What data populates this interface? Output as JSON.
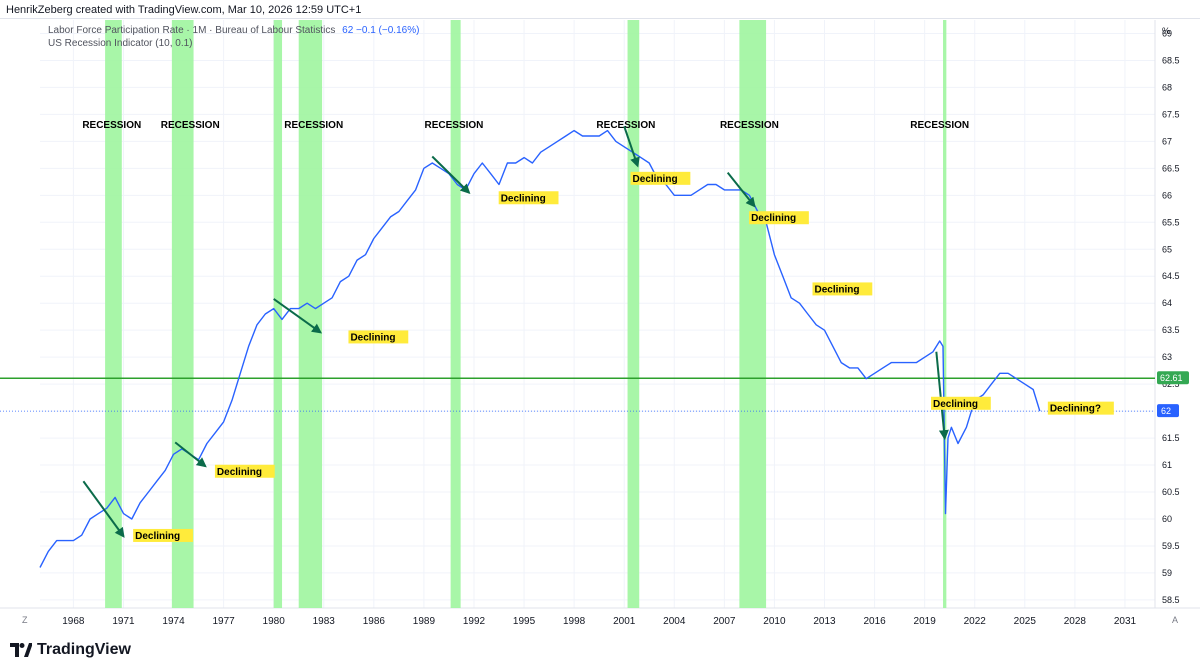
{
  "header": {
    "credit": "HenrikZeberg created with TradingView.com, Mar 10, 2026 12:59 UTC+1"
  },
  "legend": {
    "series_name": "Labor Force Participation Rate · 1M · Bureau of Labour Statistics",
    "series_value": "62  −0.1 (−0.16%)",
    "indicator_name": "US Recession Indicator (10, 0.1)"
  },
  "footer": {
    "logo_text": "TradingView",
    "left_corner": "Z",
    "right_corner": "A"
  },
  "colors": {
    "line": "#2962ff",
    "recession": "#9ef59e",
    "level_line": "#2ca02c",
    "arrow": "#0b6b4a",
    "label_bg": "#ffeb3b",
    "price_tag": "#2962ff",
    "level_tag": "#34a853"
  },
  "chart_data": {
    "type": "line",
    "unit_label": "%",
    "x_ticks": [
      "1968",
      "1971",
      "1974",
      "1977",
      "1980",
      "1983",
      "1986",
      "1989",
      "1992",
      "1995",
      "1998",
      "2001",
      "2004",
      "2007",
      "2010",
      "2013",
      "2016",
      "2019",
      "2022",
      "2025",
      "2028",
      "2031"
    ],
    "y_ticks": [
      "58.5",
      "59",
      "59.5",
      "60",
      "60.5",
      "61",
      "61.5",
      "62",
      "62.5",
      "63",
      "63.5",
      "64",
      "64.5",
      "65",
      "65.5",
      "66",
      "66.5",
      "67",
      "67.5",
      "68",
      "68.5",
      "69"
    ],
    "xlim": [
      1966.0,
      2032.8
    ],
    "ylim": [
      58.35,
      69.25
    ],
    "series": [
      {
        "values": [
          [
            1966.0,
            59.1
          ],
          [
            1966.5,
            59.4
          ],
          [
            1967.0,
            59.6
          ],
          [
            1967.5,
            59.6
          ],
          [
            1968.0,
            59.6
          ],
          [
            1968.5,
            59.7
          ],
          [
            1969.0,
            60.0
          ],
          [
            1969.5,
            60.1
          ],
          [
            1970.0,
            60.2
          ],
          [
            1970.5,
            60.4
          ],
          [
            1971.0,
            60.1
          ],
          [
            1971.5,
            60.0
          ],
          [
            1972.0,
            60.3
          ],
          [
            1972.5,
            60.5
          ],
          [
            1973.0,
            60.7
          ],
          [
            1973.5,
            60.9
          ],
          [
            1974.0,
            61.2
          ],
          [
            1974.5,
            61.3
          ],
          [
            1975.0,
            61.2
          ],
          [
            1975.5,
            61.1
          ],
          [
            1976.0,
            61.4
          ],
          [
            1976.5,
            61.6
          ],
          [
            1977.0,
            61.8
          ],
          [
            1977.5,
            62.2
          ],
          [
            1978.0,
            62.7
          ],
          [
            1978.5,
            63.2
          ],
          [
            1979.0,
            63.6
          ],
          [
            1979.5,
            63.8
          ],
          [
            1980.0,
            63.9
          ],
          [
            1980.5,
            63.7
          ],
          [
            1981.0,
            63.9
          ],
          [
            1981.5,
            63.9
          ],
          [
            1982.0,
            64.0
          ],
          [
            1982.5,
            63.9
          ],
          [
            1983.0,
            64.0
          ],
          [
            1983.5,
            64.1
          ],
          [
            1984.0,
            64.4
          ],
          [
            1984.5,
            64.5
          ],
          [
            1985.0,
            64.8
          ],
          [
            1985.5,
            64.9
          ],
          [
            1986.0,
            65.2
          ],
          [
            1986.5,
            65.4
          ],
          [
            1987.0,
            65.6
          ],
          [
            1987.5,
            65.7
          ],
          [
            1988.0,
            65.9
          ],
          [
            1988.5,
            66.1
          ],
          [
            1989.0,
            66.5
          ],
          [
            1989.5,
            66.6
          ],
          [
            1990.0,
            66.5
          ],
          [
            1990.5,
            66.4
          ],
          [
            1991.0,
            66.2
          ],
          [
            1991.5,
            66.1
          ],
          [
            1992.0,
            66.4
          ],
          [
            1992.5,
            66.6
          ],
          [
            1993.0,
            66.4
          ],
          [
            1993.5,
            66.2
          ],
          [
            1994.0,
            66.6
          ],
          [
            1994.5,
            66.6
          ],
          [
            1995.0,
            66.7
          ],
          [
            1995.5,
            66.6
          ],
          [
            1996.0,
            66.8
          ],
          [
            1996.5,
            66.9
          ],
          [
            1997.0,
            67.0
          ],
          [
            1997.5,
            67.1
          ],
          [
            1998.0,
            67.2
          ],
          [
            1998.5,
            67.1
          ],
          [
            1999.0,
            67.1
          ],
          [
            1999.5,
            67.1
          ],
          [
            2000.0,
            67.2
          ],
          [
            2000.5,
            67.0
          ],
          [
            2001.0,
            66.9
          ],
          [
            2001.5,
            66.8
          ],
          [
            2002.0,
            66.7
          ],
          [
            2002.5,
            66.6
          ],
          [
            2003.0,
            66.3
          ],
          [
            2003.5,
            66.2
          ],
          [
            2004.0,
            66.0
          ],
          [
            2004.5,
            66.0
          ],
          [
            2005.0,
            66.0
          ],
          [
            2005.5,
            66.1
          ],
          [
            2006.0,
            66.2
          ],
          [
            2006.5,
            66.2
          ],
          [
            2007.0,
            66.1
          ],
          [
            2007.5,
            66.1
          ],
          [
            2008.0,
            66.1
          ],
          [
            2008.5,
            66.0
          ],
          [
            2009.0,
            65.7
          ],
          [
            2009.5,
            65.5
          ],
          [
            2010.0,
            64.9
          ],
          [
            2010.5,
            64.5
          ],
          [
            2011.0,
            64.1
          ],
          [
            2011.5,
            64.0
          ],
          [
            2012.0,
            63.8
          ],
          [
            2012.5,
            63.6
          ],
          [
            2013.0,
            63.5
          ],
          [
            2013.5,
            63.2
          ],
          [
            2014.0,
            62.9
          ],
          [
            2014.5,
            62.8
          ],
          [
            2015.0,
            62.8
          ],
          [
            2015.5,
            62.6
          ],
          [
            2016.0,
            62.7
          ],
          [
            2016.5,
            62.8
          ],
          [
            2017.0,
            62.9
          ],
          [
            2017.5,
            62.9
          ],
          [
            2018.0,
            62.9
          ],
          [
            2018.5,
            62.9
          ],
          [
            2019.0,
            63.0
          ],
          [
            2019.5,
            63.1
          ],
          [
            2019.9,
            63.3
          ],
          [
            2020.1,
            63.2
          ],
          [
            2020.25,
            60.1
          ],
          [
            2020.4,
            61.5
          ],
          [
            2020.6,
            61.7
          ],
          [
            2021.0,
            61.4
          ],
          [
            2021.5,
            61.7
          ],
          [
            2022.0,
            62.2
          ],
          [
            2022.5,
            62.3
          ],
          [
            2023.0,
            62.5
          ],
          [
            2023.5,
            62.7
          ],
          [
            2024.0,
            62.7
          ],
          [
            2024.5,
            62.6
          ],
          [
            2025.0,
            62.5
          ],
          [
            2025.5,
            62.4
          ],
          [
            2025.9,
            62.0
          ]
        ]
      }
    ],
    "recessions": [
      [
        1969.9,
        1970.9
      ],
      [
        1973.9,
        1975.2
      ],
      [
        1980.0,
        1980.5
      ],
      [
        1981.5,
        1982.9
      ],
      [
        1990.6,
        1991.2
      ],
      [
        2001.2,
        2001.9
      ],
      [
        2007.9,
        2009.5
      ],
      [
        2020.1,
        2020.3
      ]
    ],
    "recession_label": "RECESSION",
    "recession_label_x": [
      1970.3,
      1975.0,
      1982.4,
      1990.8,
      2001.1,
      2008.5,
      2019.9
    ],
    "annotations": [
      {
        "x": 1971.7,
        "y": 59.63,
        "text": "Declining",
        "from": [
          1968.6,
          60.7
        ],
        "to": [
          1971.0,
          59.68
        ]
      },
      {
        "x": 1976.6,
        "y": 60.82,
        "text": "Declining",
        "from": [
          1974.1,
          61.42
        ],
        "to": [
          1975.9,
          60.98
        ]
      },
      {
        "x": 1984.6,
        "y": 63.31,
        "text": "Declining",
        "from": [
          1980.0,
          64.08
        ],
        "to": [
          1982.8,
          63.46
        ]
      },
      {
        "x": 1993.6,
        "y": 65.89,
        "text": "Declining",
        "from": [
          1989.5,
          66.72
        ],
        "to": [
          1991.7,
          66.05
        ]
      },
      {
        "x": 2001.5,
        "y": 66.25,
        "text": "Declining",
        "from": [
          2001.0,
          67.28
        ],
        "to": [
          2001.8,
          66.55
        ]
      },
      {
        "x": 2008.6,
        "y": 65.52,
        "text": "Declining",
        "from": [
          2007.2,
          66.42
        ],
        "to": [
          2008.8,
          65.8
        ]
      },
      {
        "x": 2012.4,
        "y": 64.2,
        "text": "Declining",
        "from": null,
        "to": null
      },
      {
        "x": 2019.5,
        "y": 62.08,
        "text": "Declining",
        "from": [
          2019.7,
          63.1
        ],
        "to": [
          2020.2,
          61.5
        ]
      },
      {
        "x": 2026.5,
        "y": 61.99,
        "text": "Declining?",
        "from": null,
        "to": null
      }
    ],
    "horizontal_line": {
      "y": 62.61,
      "label": "62.61"
    },
    "last_value": {
      "y": 62,
      "label": "62"
    }
  }
}
